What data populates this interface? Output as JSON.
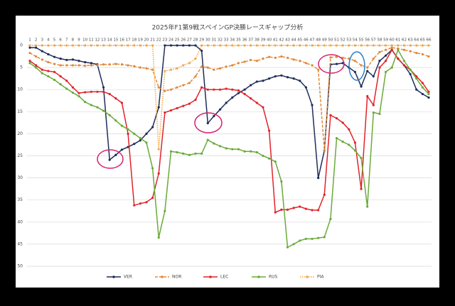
{
  "chart_data": {
    "type": "line",
    "title": "2025年F1第9戦スペインGP決勝レースギャップ分析",
    "x": [
      1,
      2,
      3,
      4,
      5,
      6,
      7,
      8,
      9,
      10,
      11,
      12,
      13,
      14,
      15,
      16,
      17,
      18,
      19,
      20,
      21,
      22,
      23,
      24,
      25,
      26,
      27,
      28,
      29,
      30,
      31,
      32,
      33,
      34,
      35,
      36,
      37,
      38,
      39,
      40,
      41,
      42,
      43,
      44,
      45,
      46,
      47,
      48,
      49,
      50,
      51,
      52,
      53,
      54,
      55,
      56,
      57,
      58,
      59,
      60,
      61,
      62,
      63,
      64,
      65,
      66
    ],
    "xlim": [
      1,
      66
    ],
    "xticks": [
      1,
      2,
      3,
      4,
      5,
      6,
      7,
      8,
      9,
      10,
      11,
      12,
      13,
      14,
      15,
      16,
      17,
      18,
      19,
      20,
      21,
      22,
      23,
      24,
      25,
      26,
      27,
      28,
      29,
      30,
      31,
      32,
      33,
      34,
      35,
      36,
      37,
      38,
      39,
      40,
      41,
      42,
      43,
      44,
      45,
      46,
      47,
      48,
      49,
      50,
      51,
      52,
      53,
      54,
      55,
      56,
      57,
      58,
      59,
      60,
      61,
      62,
      63,
      64,
      65,
      66
    ],
    "ylim": [
      0,
      50
    ],
    "yticks": [
      0,
      5,
      10,
      15,
      20,
      25,
      30,
      35,
      40,
      45,
      50
    ],
    "y_inverted": true,
    "grid": true,
    "legend": "bottom",
    "series": [
      {
        "name": "VER",
        "color": "#1f2d5a",
        "line_style": "solid",
        "values": [
          0.5,
          0.5,
          1.3,
          2,
          2.6,
          3,
          3.3,
          3.2,
          3.5,
          3.8,
          4,
          4.3,
          9.5,
          25.9,
          24.8,
          23.6,
          23,
          22.3,
          21.5,
          20,
          18.5,
          14,
          0,
          0,
          0,
          0,
          0,
          0,
          1.2,
          17.6,
          16,
          14.5,
          13,
          11.8,
          10.8,
          10,
          9,
          8.2,
          8,
          7.5,
          7,
          6.8,
          7.2,
          7.5,
          8,
          9.5,
          13.5,
          30,
          23.8,
          4.3,
          4.2,
          4,
          5,
          6,
          9.3,
          5.8,
          7,
          3.5,
          2.3,
          1,
          3,
          4.5,
          6.5,
          10,
          11,
          11.8
        ]
      },
      {
        "name": "NOR",
        "color": "#e08a3c",
        "line_style": "dashed",
        "values": [
          1.7,
          2.5,
          3.2,
          3.8,
          4.2,
          4.5,
          4.5,
          4.5,
          4.5,
          4.6,
          4.5,
          4.5,
          4.3,
          4.3,
          4.2,
          4.3,
          4.5,
          4.7,
          5,
          5.2,
          5.5,
          9.5,
          10.3,
          10,
          9.5,
          9,
          8.5,
          7,
          4.8,
          5,
          5.5,
          5.2,
          4.8,
          4.5,
          4,
          3.7,
          3.3,
          3.5,
          3,
          2.6,
          2.8,
          2.5,
          2.8,
          3.2,
          3.5,
          4,
          4.5,
          5.5,
          23.8,
          2.7,
          2.6,
          2.8,
          3,
          3.5,
          4.5,
          5,
          3,
          1.5,
          1,
          0.5,
          0.7,
          1,
          1.3,
          1.7,
          2,
          2.5
        ]
      },
      {
        "name": "LEC",
        "color": "#e0242a",
        "line_style": "solid",
        "values": [
          3.5,
          4.5,
          5.5,
          5.8,
          6,
          7,
          8,
          9.5,
          10.8,
          10.6,
          10.5,
          10.5,
          10.5,
          11,
          12,
          13,
          20,
          36.2,
          35.8,
          35.5,
          34.5,
          29,
          15.2,
          14.7,
          14.2,
          13.7,
          13.2,
          12.3,
          9.5,
          10,
          10,
          10,
          9.8,
          10,
          10.2,
          11,
          12,
          13,
          14,
          19.3,
          37.8,
          37.2,
          37.2,
          36.8,
          36.5,
          37,
          37.3,
          37.3,
          33.8,
          15.8,
          16.5,
          17.5,
          19,
          22,
          32.5,
          11.5,
          13.5,
          5,
          3.5,
          1,
          3,
          4.5,
          5.5,
          7,
          8.5,
          10.5
        ]
      },
      {
        "name": "RUS",
        "color": "#6aaa3a",
        "line_style": "solid",
        "values": [
          4,
          5,
          6.3,
          7,
          7.8,
          8.8,
          9.8,
          10.7,
          11.5,
          12.8,
          13.5,
          14,
          14.8,
          15.8,
          17,
          18.2,
          19,
          20,
          21,
          22,
          27.8,
          43.5,
          37.5,
          24,
          24.2,
          24.5,
          24.8,
          24.5,
          24.5,
          21.4,
          22.2,
          22.8,
          23.3,
          23.5,
          23.5,
          24,
          24,
          24.2,
          25,
          25.6,
          26.3,
          30.8,
          45.7,
          45,
          44.2,
          43.8,
          43.8,
          43.6,
          43.4,
          39.3,
          21,
          21.8,
          22.5,
          23.8,
          25.5,
          36.5,
          15.2,
          15.5,
          6,
          5,
          1,
          3.5,
          5.5,
          7.5,
          9.5,
          11
        ]
      },
      {
        "name": "PIA",
        "color": "#f2a648",
        "line_style": "dotted",
        "values": [
          0,
          0,
          0,
          0,
          0,
          0,
          0,
          0,
          0,
          0,
          0,
          0,
          0,
          0,
          0,
          0,
          0,
          0,
          0,
          0,
          0,
          23.5,
          5.8,
          5.5,
          5.2,
          4.5,
          4,
          3,
          0,
          0,
          0,
          0,
          0,
          0,
          0,
          0,
          0,
          0,
          0,
          0,
          0,
          0,
          0,
          0,
          0,
          0,
          0,
          0,
          0,
          0,
          0,
          0,
          0,
          0,
          0,
          0,
          0,
          0,
          0,
          0,
          0,
          0,
          0,
          0,
          0,
          0
        ]
      }
    ]
  }
}
